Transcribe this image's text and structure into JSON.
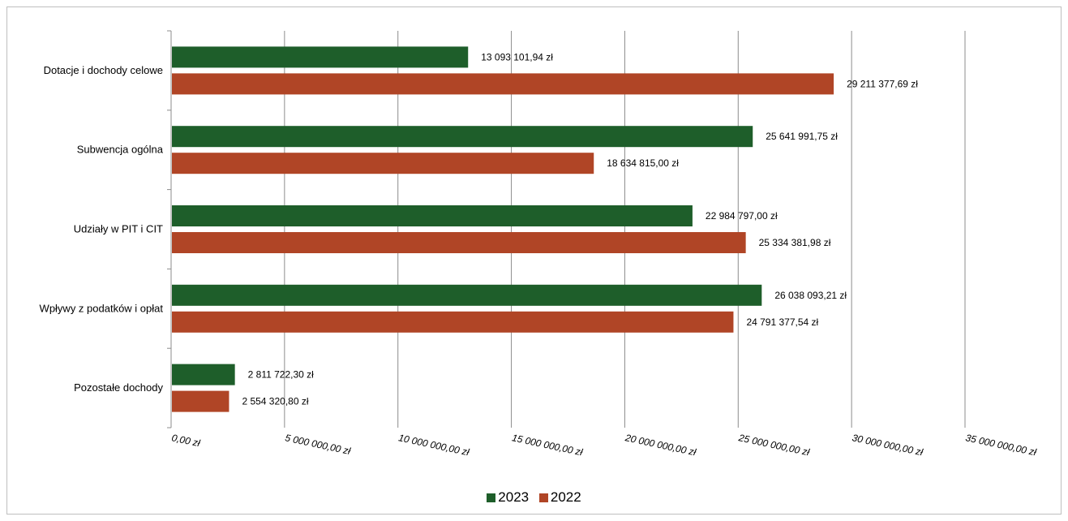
{
  "chart_data": {
    "type": "bar",
    "orientation": "horizontal",
    "categories": [
      "Dotacje i dochody celowe",
      "Subwencja ogólna",
      "Udziały w PIT i CIT",
      "Wpływy z podatków i opłat",
      "Pozostałe dochody"
    ],
    "series": [
      {
        "name": "2023",
        "color": "#1e5e2a",
        "values": [
          13093101.94,
          25641991.75,
          22984797.0,
          26038093.21,
          2811722.3
        ],
        "labels": [
          "13 093 101,94 zł",
          "25 641 991,75 zł",
          "22 984 797,00 zł",
          "26 038 093,21 zł",
          "2 811 722,30 zł"
        ]
      },
      {
        "name": "2022",
        "color": "#b04526",
        "values": [
          29211377.69,
          18634815.0,
          25334381.98,
          24791377.54,
          2554320.8
        ],
        "labels": [
          "29 211 377,69 zł",
          "18 634 815,00 zł",
          "25 334 381,98 zł",
          "24 791 377,54 zł",
          "2 554 320,80 zł"
        ]
      }
    ],
    "xlim": [
      0,
      35000000
    ],
    "xticks": [
      0,
      5000000,
      10000000,
      15000000,
      20000000,
      25000000,
      30000000,
      35000000
    ],
    "xtick_labels": [
      "0,00 zł",
      "5 000 000,00 zł",
      "10 000 000,00 zł",
      "15 000 000,00 zł",
      "20 000 000,00 zł",
      "25 000 000,00 zł",
      "30 000 000,00 zł",
      "35 000 000,00 zł"
    ],
    "grid": true,
    "legend": "bottom",
    "title": "",
    "xlabel": "",
    "ylabel": ""
  }
}
